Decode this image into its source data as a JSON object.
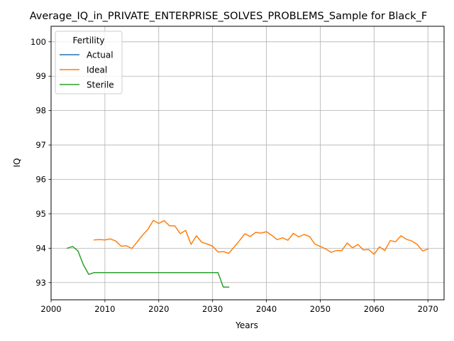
{
  "chart_data": {
    "type": "line",
    "title": "Average_IQ_in_PRIVATE_ENTERPRISE_SOLVES_PROBLEMS_Sample for Black_F",
    "xlabel": "Years",
    "ylabel": "IQ",
    "xlim": [
      2000,
      2073
    ],
    "ylim": [
      92.5,
      100.45
    ],
    "xticks": [
      2000,
      2010,
      2020,
      2030,
      2040,
      2050,
      2060,
      2070
    ],
    "yticks": [
      93,
      94,
      95,
      96,
      97,
      98,
      99,
      100
    ],
    "grid": true,
    "legend": {
      "title": "Fertility",
      "position": "top-left"
    },
    "series": [
      {
        "name": "Actual",
        "color": "#1f77b4",
        "x": [],
        "y": []
      },
      {
        "name": "Ideal",
        "color": "#ff7f0e",
        "x": [
          2008,
          2009,
          2010,
          2011,
          2012,
          2013,
          2014,
          2015,
          2016,
          2017,
          2018,
          2019,
          2020,
          2021,
          2022,
          2023,
          2024,
          2025,
          2026,
          2027,
          2028,
          2029,
          2030,
          2031,
          2032,
          2033,
          2034,
          2035,
          2036,
          2037,
          2038,
          2039,
          2040,
          2041,
          2042,
          2043,
          2044,
          2045,
          2046,
          2047,
          2048,
          2049,
          2050,
          2051,
          2052,
          2053,
          2054,
          2055,
          2056,
          2057,
          2058,
          2059,
          2060,
          2061,
          2062,
          2063,
          2064,
          2065,
          2066,
          2067,
          2068,
          2069,
          2070
        ],
        "y": [
          94.24,
          94.25,
          94.24,
          94.27,
          94.21,
          94.06,
          94.07,
          93.99,
          94.18,
          94.38,
          94.55,
          94.81,
          94.72,
          94.8,
          94.65,
          94.65,
          94.42,
          94.52,
          94.11,
          94.36,
          94.17,
          94.12,
          94.06,
          93.89,
          93.9,
          93.85,
          94.03,
          94.22,
          94.42,
          94.34,
          94.46,
          94.44,
          94.48,
          94.37,
          94.25,
          94.3,
          94.23,
          94.43,
          94.33,
          94.4,
          94.34,
          94.12,
          94.05,
          93.98,
          93.88,
          93.93,
          93.93,
          94.15,
          94.01,
          94.11,
          93.95,
          93.96,
          93.82,
          94.04,
          93.93,
          94.22,
          94.19,
          94.36,
          94.26,
          94.21,
          94.11,
          93.92,
          93.97
        ]
      },
      {
        "name": "Sterile",
        "color": "#2ca02c",
        "x": [
          2003,
          2004,
          2005,
          2006,
          2007,
          2008,
          2009,
          2010,
          2011,
          2012,
          2013,
          2014,
          2015,
          2016,
          2017,
          2018,
          2019,
          2020,
          2021,
          2022,
          2023,
          2024,
          2025,
          2026,
          2027,
          2028,
          2029,
          2030,
          2031,
          2032,
          2033
        ],
        "y": [
          94.0,
          94.05,
          93.92,
          93.52,
          93.24,
          93.29,
          93.29,
          93.29,
          93.29,
          93.29,
          93.29,
          93.29,
          93.29,
          93.29,
          93.29,
          93.29,
          93.29,
          93.29,
          93.29,
          93.29,
          93.29,
          93.29,
          93.29,
          93.29,
          93.29,
          93.29,
          93.29,
          93.29,
          93.29,
          92.87,
          92.87
        ]
      }
    ]
  }
}
